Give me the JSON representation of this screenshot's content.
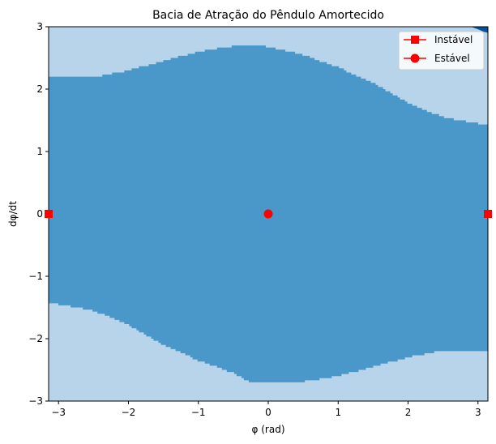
{
  "chart_data": {
    "type": "heatmap",
    "title": "Bacia de Atração do Pêndulo Amortecido",
    "xlabel": "φ (rad)",
    "ylabel": "dφ/dt",
    "xlim": [
      -3.14159,
      3.14159
    ],
    "ylim": [
      -3,
      3
    ],
    "x_ticks": [
      -3,
      -2,
      -1,
      0,
      1,
      2,
      3
    ],
    "x_tick_labels": [
      "−3",
      "−2",
      "−1",
      "0",
      "1",
      "2",
      "3"
    ],
    "y_ticks": [
      -3,
      -2,
      -1,
      0,
      1,
      2,
      3
    ],
    "y_tick_labels": [
      "−3",
      "−2",
      "−1",
      "0",
      "1",
      "2",
      "3"
    ],
    "grid": false,
    "legend_position": "top-right",
    "colors": {
      "outer_region": "#b7d4ea",
      "basin_region": "#4a98c9",
      "corner_region": "#08519c",
      "marker": "#ff0000"
    },
    "basin_boundary": {
      "phi": [
        -3.14,
        -2.5,
        -2.0,
        -1.5,
        -1.0,
        -0.5,
        -0.3,
        0.0,
        0.5,
        1.0,
        1.5,
        2.0,
        2.5,
        3.14
      ],
      "upper": [
        2.2,
        2.19,
        2.3,
        2.45,
        2.6,
        2.69,
        2.71,
        2.68,
        2.55,
        2.35,
        2.1,
        1.78,
        1.55,
        1.42
      ],
      "lower": [
        -1.42,
        -1.55,
        -1.78,
        -2.1,
        -2.35,
        -2.55,
        -2.68,
        -2.71,
        -2.69,
        -2.6,
        -2.45,
        -2.3,
        -2.19,
        -2.2
      ]
    },
    "series": [
      {
        "name": "Instável",
        "marker": "square",
        "points": [
          [
            -3.14159,
            0
          ],
          [
            3.14159,
            0
          ]
        ]
      },
      {
        "name": "Estável",
        "marker": "circle",
        "points": [
          [
            0,
            0
          ]
        ]
      }
    ]
  }
}
